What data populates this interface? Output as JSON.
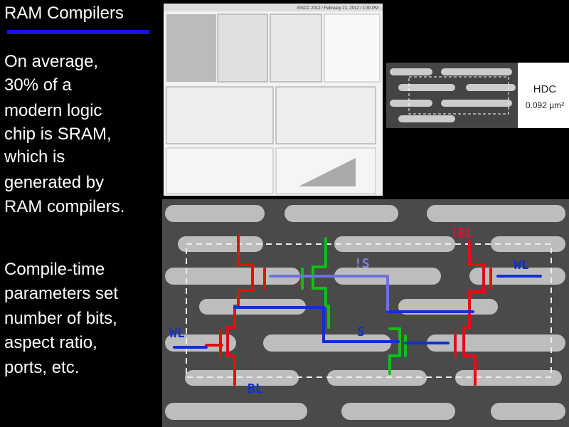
{
  "title": "RAM Compilers",
  "paragraphs": [
    [
      "On average,",
      "30% of a",
      "modern logic",
      "chip is SRAM,",
      "which is",
      "generated by",
      "RAM compilers."
    ],
    [
      "Compile-time",
      "parameters set",
      "number of bits,",
      "aspect ratio,",
      "ports, etc."
    ]
  ],
  "figures": {
    "paper_header": "ISSCC 2012 / February 21, 2012 / 1:30 PM",
    "cell_label": "HDC",
    "cell_area": "0.092 µm²",
    "annotations": [
      "!BL",
      "WL",
      "!S",
      "S",
      "WL",
      "BL"
    ]
  }
}
